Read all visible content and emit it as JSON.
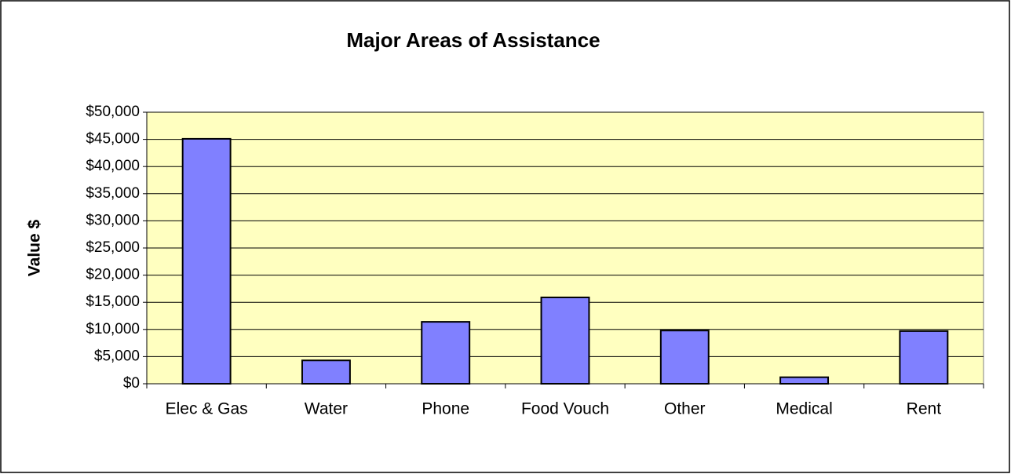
{
  "chart_data": {
    "type": "bar",
    "title": "Major Areas of Assistance",
    "y_label": "Value $",
    "categories": [
      "Elec & Gas",
      "Water",
      "Phone",
      "Food Vouch",
      "Other",
      "Medical",
      "Rent"
    ],
    "values": [
      45100,
      4300,
      11400,
      15900,
      9800,
      1200,
      9700
    ],
    "color": "#8080ff",
    "plot_background": "#ffffc0",
    "ylim": [
      0,
      50000
    ],
    "yticks": [
      {
        "value": 0,
        "label": "$0"
      },
      {
        "value": 5000,
        "label": "$5,000"
      },
      {
        "value": 10000,
        "label": "$10,000"
      },
      {
        "value": 15000,
        "label": "$15,000"
      },
      {
        "value": 20000,
        "label": "$20,000"
      },
      {
        "value": 25000,
        "label": "$25,000"
      },
      {
        "value": 30000,
        "label": "$30,000"
      },
      {
        "value": 35000,
        "label": "$35,000"
      },
      {
        "value": 40000,
        "label": "$40,000"
      },
      {
        "value": 45000,
        "label": "$45,000"
      },
      {
        "value": 50000,
        "label": "$50,000"
      }
    ],
    "grid": true
  }
}
